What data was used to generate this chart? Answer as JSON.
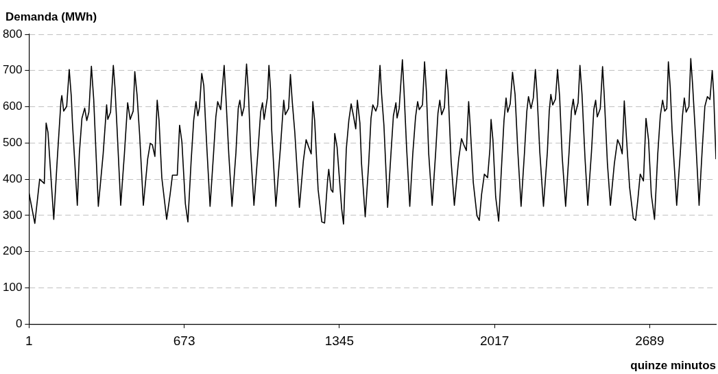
{
  "chart_data": {
    "type": "line",
    "ylabel": "Demanda (MWh)",
    "xlabel": "quinze minutos",
    "xlim": [
      1,
      2976
    ],
    "xticks": [
      1,
      673,
      1345,
      2017,
      2689
    ],
    "ylim": [
      0,
      800
    ],
    "yticks": [
      0,
      100,
      200,
      300,
      400,
      500,
      600,
      700,
      800
    ],
    "grid": "y",
    "marker": "none",
    "line_style": "solid",
    "x": [
      1,
      26,
      47,
      67,
      75,
      83,
      108,
      123,
      139,
      143,
      151,
      164,
      175,
      184,
      189,
      210,
      219,
      230,
      242,
      251,
      260,
      271,
      281,
      292,
      301,
      322,
      337,
      342,
      354,
      366,
      373,
      382,
      398,
      414,
      428,
      439,
      452,
      459,
      469,
      480,
      496,
      515,
      526,
      535,
      546,
      556,
      564,
      576,
      597,
      612,
      622,
      643,
      653,
      663,
      678,
      689,
      703,
      714,
      724,
      732,
      739,
      749,
      758,
      765,
      772,
      785,
      800,
      810,
      818,
      831,
      846,
      853,
      866,
      880,
      897,
      907,
      914,
      923,
      932,
      943,
      951,
      961,
      975,
      992,
      1004,
      1012,
      1019,
      1033,
      1040,
      1047,
      1052,
      1070,
      1090,
      1104,
      1111,
      1125,
      1133,
      1141,
      1152,
      1172,
      1189,
      1201,
      1212,
      1223,
      1230,
      1238,
      1253,
      1269,
      1281,
      1294,
      1299,
      1309,
      1317,
      1325,
      1335,
      1355,
      1363,
      1375,
      1386,
      1396,
      1406,
      1416,
      1423,
      1434,
      1441,
      1457,
      1472,
      1482,
      1490,
      1503,
      1511,
      1521,
      1528,
      1538,
      1554,
      1569,
      1579,
      1590,
      1595,
      1604,
      1618,
      1625,
      1636,
      1650,
      1663,
      1675,
      1684,
      1691,
      1705,
      1714,
      1722,
      1732,
      1747,
      1762,
      1772,
      1780,
      1788,
      1800,
      1808,
      1816,
      1829,
      1843,
      1862,
      1874,
      1884,
      1895,
      1905,
      1911,
      1925,
      1941,
      1951,
      1961,
      1973,
      1987,
      1997,
      2002,
      2010,
      2022,
      2035,
      2050,
      2058,
      2067,
      2074,
      2085,
      2095,
      2106,
      2118,
      2132,
      2147,
      2157,
      2164,
      2175,
      2185,
      2194,
      2201,
      2213,
      2229,
      2246,
      2254,
      2261,
      2269,
      2281,
      2290,
      2299,
      2310,
      2325,
      2340,
      2350,
      2358,
      2366,
      2379,
      2387,
      2396,
      2409,
      2421,
      2437,
      2447,
      2455,
      2462,
      2475,
      2485,
      2492,
      2506,
      2519,
      2536,
      2550,
      2561,
      2570,
      2579,
      2587,
      2602,
      2618,
      2628,
      2638,
      2648,
      2662,
      2673,
      2684,
      2696,
      2710,
      2724,
      2735,
      2745,
      2754,
      2763,
      2770,
      2778,
      2786,
      2806,
      2822,
      2831,
      2839,
      2847,
      2859,
      2867,
      2875,
      2887,
      2903,
      2916,
      2928,
      2939,
      2950,
      2960,
      2966,
      2976
    ],
    "series": [
      {
        "color": "#000000",
        "values": [
          361,
          278,
          400,
          388,
          555,
          529,
          289,
          453,
          614,
          631,
          588,
          601,
          703,
          628,
          555,
          328,
          473,
          568,
          596,
          562,
          585,
          712,
          621,
          457,
          325,
          470,
          605,
          565,
          585,
          714,
          654,
          542,
          328,
          470,
          611,
          565,
          588,
          697,
          631,
          522,
          328,
          457,
          499,
          495,
          463,
          618,
          562,
          404,
          289,
          358,
          411,
          411,
          549,
          503,
          332,
          282,
          450,
          562,
          614,
          575,
          598,
          692,
          657,
          562,
          476,
          325,
          470,
          572,
          614,
          592,
          714,
          634,
          470,
          325,
          473,
          595,
          618,
          575,
          598,
          718,
          641,
          476,
          328,
          473,
          585,
          611,
          565,
          624,
          714,
          647,
          536,
          325,
          489,
          618,
          578,
          595,
          689,
          614,
          529,
          322,
          450,
          509,
          489,
          470,
          614,
          562,
          371,
          282,
          279,
          397,
          427,
          371,
          364,
          526,
          489,
          318,
          276,
          483,
          562,
          608,
          575,
          539,
          618,
          555,
          443,
          296,
          443,
          568,
          605,
          588,
          605,
          714,
          634,
          549,
          322,
          476,
          575,
          611,
          569,
          595,
          730,
          644,
          489,
          325,
          470,
          572,
          614,
          592,
          605,
          724,
          641,
          470,
          328,
          473,
          582,
          618,
          578,
          598,
          703,
          644,
          450,
          328,
          457,
          512,
          495,
          479,
          614,
          555,
          391,
          299,
          286,
          358,
          414,
          404,
          483,
          565,
          509,
          351,
          284,
          466,
          562,
          624,
          585,
          608,
          695,
          634,
          476,
          325,
          476,
          588,
          628,
          595,
          624,
          703,
          638,
          476,
          325,
          476,
          588,
          634,
          605,
          621,
          703,
          628,
          463,
          325,
          476,
          588,
          621,
          578,
          611,
          714,
          634,
          457,
          328,
          476,
          592,
          618,
          572,
          595,
          711,
          634,
          443,
          328,
          443,
          509,
          493,
          470,
          616,
          529,
          378,
          292,
          286,
          345,
          414,
          395,
          568,
          509,
          358,
          289,
          470,
          575,
          618,
          588,
          595,
          724,
          654,
          536,
          328,
          476,
          575,
          624,
          585,
          601,
          733,
          660,
          526,
          328,
          476,
          601,
          628,
          620,
          700,
          640,
          455
        ]
      }
    ]
  }
}
